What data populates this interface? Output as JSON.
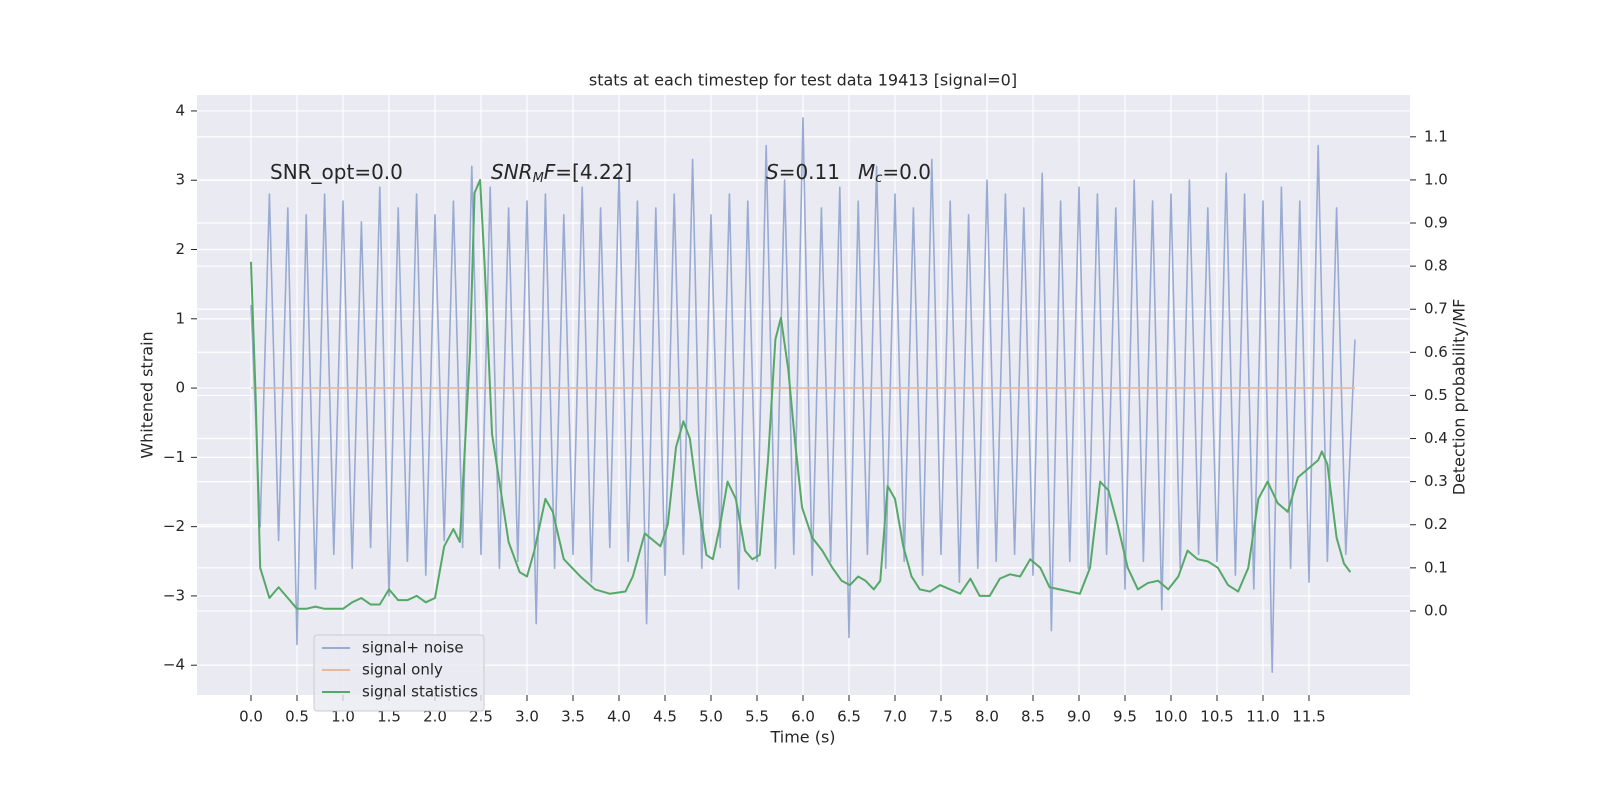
{
  "chart_data": {
    "type": "line",
    "title": "stats at each timestep for test data 19413 [signal=0]",
    "xlabel": "Time (s)",
    "ylabel": "Whitened strain",
    "y2label": "Detection probability/MF",
    "annotations": [
      [
        "SNR_opt=0.0"
      ],
      [
        "SNR",
        "M",
        "F",
        "=[4.22]"
      ],
      [
        "S",
        "=0.11"
      ],
      [
        "M",
        "c",
        "=0.0"
      ]
    ],
    "grid": true,
    "legend": "lower left",
    "xlim": [
      -0.587,
      12.598
    ],
    "ylim": [
      -4.43,
      4.23
    ],
    "y2lim": [
      -0.195,
      1.197
    ],
    "xticks": [
      {
        "value": 0,
        "label": "0.0"
      },
      {
        "value": 0.5,
        "label": "0.5"
      },
      {
        "value": 1,
        "label": "1.0"
      },
      {
        "value": 1.5,
        "label": "1.5"
      },
      {
        "value": 2,
        "label": "2.0"
      },
      {
        "value": 2.5,
        "label": "2.5"
      },
      {
        "value": 3,
        "label": "3.0"
      },
      {
        "value": 3.5,
        "label": "3.5"
      },
      {
        "value": 4,
        "label": "4.0"
      },
      {
        "value": 4.5,
        "label": "4.5"
      },
      {
        "value": 5,
        "label": "5.0"
      },
      {
        "value": 5.5,
        "label": "5.5"
      },
      {
        "value": 6,
        "label": "6.0"
      },
      {
        "value": 6.5,
        "label": "6.5"
      },
      {
        "value": 7,
        "label": "7.0"
      },
      {
        "value": 7.5,
        "label": "7.5"
      },
      {
        "value": 8,
        "label": "8.0"
      },
      {
        "value": 8.5,
        "label": "8.5"
      },
      {
        "value": 9,
        "label": "9.0"
      },
      {
        "value": 9.5,
        "label": "9.5"
      },
      {
        "value": 10,
        "label": "10.0"
      },
      {
        "value": 10.5,
        "label": "10.5"
      },
      {
        "value": 11,
        "label": "11.0"
      },
      {
        "value": 11.5,
        "label": "11.5"
      }
    ],
    "yticks": [
      {
        "value": -4,
        "label": "−4"
      },
      {
        "value": -3,
        "label": "−3"
      },
      {
        "value": -2,
        "label": "−2"
      },
      {
        "value": -1,
        "label": "−1"
      },
      0,
      1,
      2,
      3,
      4
    ],
    "y2ticks": [
      {
        "value": 0,
        "label": "0.0"
      },
      {
        "value": 0.1,
        "label": "0.1"
      },
      {
        "value": 0.2,
        "label": "0.2"
      },
      {
        "value": 0.3,
        "label": "0.3"
      },
      {
        "value": 0.4,
        "label": "0.4"
      },
      {
        "value": 0.5,
        "label": "0.5"
      },
      {
        "value": 0.6,
        "label": "0.6"
      },
      {
        "value": 0.7,
        "label": "0.7"
      },
      {
        "value": 0.8,
        "label": "0.8"
      },
      {
        "value": 0.9,
        "label": "0.9"
      },
      {
        "value": 1.0,
        "label": "1.0"
      },
      {
        "value": 1.1,
        "label": "1.1"
      }
    ],
    "series": [
      {
        "name": "signal+ noise",
        "color": "#99abd2",
        "x": [
          0,
          0.1,
          0.2,
          0.3,
          0.4,
          0.5,
          0.6,
          0.7,
          0.8,
          0.9,
          1,
          1.1,
          1.2,
          1.3,
          1.4,
          1.5,
          1.6,
          1.7,
          1.8,
          1.9,
          2,
          2.1,
          2.2,
          2.3,
          2.4,
          2.5,
          2.6,
          2.7,
          2.8,
          2.9,
          3,
          3.1,
          3.2,
          3.3,
          3.4,
          3.5,
          3.6,
          3.7,
          3.8,
          3.9,
          4,
          4.1,
          4.2,
          4.3,
          4.4,
          4.5,
          4.6,
          4.7,
          4.8,
          4.9,
          5,
          5.1,
          5.2,
          5.3,
          5.4,
          5.5,
          5.6,
          5.7,
          5.8,
          5.9,
          6,
          6.1,
          6.2,
          6.3,
          6.4,
          6.5,
          6.6,
          6.7,
          6.8,
          6.9,
          7,
          7.1,
          7.2,
          7.3,
          7.4,
          7.5,
          7.6,
          7.7,
          7.8,
          7.9,
          8,
          8.1,
          8.2,
          8.3,
          8.4,
          8.5,
          8.6,
          8.7,
          8.8,
          8.9,
          9,
          9.1,
          9.2,
          9.3,
          9.4,
          9.5,
          9.6,
          9.7,
          9.8,
          9.9,
          10,
          10.1,
          10.2,
          10.3,
          10.4,
          10.5,
          10.6,
          10.7,
          10.8,
          10.9,
          11,
          11.1,
          11.2,
          11.3,
          11.4,
          11.5,
          11.6,
          11.7,
          11.8,
          11.9,
          12
        ],
        "values": [
          1.2,
          -2.0,
          2.8,
          -2.2,
          2.6,
          -3.7,
          2.5,
          -2.9,
          2.8,
          -2.4,
          2.7,
          -2.6,
          2.4,
          -2.3,
          2.9,
          -3.0,
          2.6,
          -2.5,
          2.8,
          -2.7,
          2.5,
          -2.2,
          2.7,
          -2.3,
          3.2,
          -2.4,
          2.9,
          -2.6,
          2.6,
          -2.5,
          2.7,
          -3.4,
          2.8,
          -2.6,
          2.5,
          -2.4,
          2.9,
          -2.8,
          2.6,
          -2.3,
          3.1,
          -2.5,
          2.7,
          -3.4,
          2.6,
          -2.7,
          2.8,
          -2.4,
          3.3,
          -2.6,
          2.5,
          -2.3,
          2.8,
          -2.9,
          2.7,
          -2.5,
          3.5,
          -2.6,
          3.0,
          -2.4,
          3.9,
          -2.7,
          2.6,
          -2.5,
          2.9,
          -3.6,
          2.7,
          -2.4,
          3.2,
          -2.6,
          2.8,
          -2.5,
          2.6,
          -2.7,
          3.3,
          -2.4,
          2.7,
          -2.8,
          2.5,
          -2.6,
          3.0,
          -2.5,
          2.8,
          -2.4,
          2.6,
          -2.7,
          3.1,
          -3.5,
          2.7,
          -2.5,
          2.9,
          -2.6,
          2.8,
          -2.4,
          2.6,
          -2.9,
          3.0,
          -2.5,
          2.7,
          -3.2,
          2.8,
          -2.6,
          3.0,
          -2.4,
          2.6,
          -2.5,
          3.1,
          -2.7,
          2.8,
          -2.9,
          2.7,
          -4.1,
          2.9,
          -2.6,
          2.7,
          -2.8,
          3.5,
          -2.5,
          2.6,
          -2.4,
          0.7
        ]
      },
      {
        "name": "signal only",
        "color": "#e6b8a0",
        "x": [
          0,
          12
        ],
        "values": [
          0,
          0
        ]
      },
      {
        "name": "signal statistics",
        "color": "#55a868",
        "axis": "y2",
        "x": [
          0,
          0.05,
          0.1,
          0.2,
          0.3,
          0.4,
          0.5,
          0.6,
          0.7,
          0.8,
          0.9,
          1.0,
          1.1,
          1.2,
          1.3,
          1.4,
          1.5,
          1.6,
          1.7,
          1.8,
          1.9,
          2.0,
          2.1,
          2.2,
          2.27,
          2.38,
          2.43,
          2.49,
          2.54,
          2.62,
          2.7,
          2.8,
          2.92,
          3.0,
          3.08,
          3.2,
          3.28,
          3.4,
          3.58,
          3.74,
          3.9,
          4.07,
          4.15,
          4.28,
          4.45,
          4.53,
          4.62,
          4.7,
          4.77,
          4.85,
          4.95,
          5.02,
          5.1,
          5.18,
          5.27,
          5.37,
          5.45,
          5.53,
          5.62,
          5.7,
          5.76,
          5.84,
          5.91,
          5.99,
          6.1,
          6.21,
          6.32,
          6.42,
          6.51,
          6.6,
          6.68,
          6.77,
          6.84,
          6.92,
          7.0,
          7.09,
          7.18,
          7.27,
          7.38,
          7.49,
          7.6,
          7.71,
          7.82,
          7.92,
          8.03,
          8.14,
          8.25,
          8.36,
          8.47,
          8.58,
          8.68,
          8.79,
          8.9,
          9.01,
          9.12,
          9.23,
          9.32,
          9.42,
          9.53,
          9.64,
          9.75,
          9.86,
          9.97,
          10.08,
          10.18,
          10.29,
          10.4,
          10.51,
          10.62,
          10.73,
          10.84,
          10.95,
          11.05,
          11.16,
          11.27,
          11.38,
          11.49,
          11.6,
          11.64,
          11.7,
          11.8,
          11.88,
          11.95
        ],
        "values": [
          0.81,
          0.5,
          0.1,
          0.03,
          0.055,
          0.03,
          0.005,
          0.005,
          0.01,
          0.005,
          0.005,
          0.005,
          0.02,
          0.03,
          0.015,
          0.015,
          0.05,
          0.025,
          0.025,
          0.035,
          0.02,
          0.03,
          0.15,
          0.19,
          0.16,
          0.6,
          0.97,
          1.0,
          0.8,
          0.41,
          0.3,
          0.16,
          0.09,
          0.08,
          0.14,
          0.26,
          0.23,
          0.12,
          0.08,
          0.05,
          0.04,
          0.045,
          0.08,
          0.18,
          0.15,
          0.2,
          0.38,
          0.44,
          0.4,
          0.27,
          0.13,
          0.12,
          0.2,
          0.3,
          0.26,
          0.14,
          0.12,
          0.13,
          0.35,
          0.63,
          0.68,
          0.56,
          0.4,
          0.24,
          0.17,
          0.14,
          0.1,
          0.07,
          0.06,
          0.08,
          0.07,
          0.05,
          0.07,
          0.29,
          0.26,
          0.15,
          0.08,
          0.05,
          0.045,
          0.06,
          0.05,
          0.04,
          0.075,
          0.035,
          0.035,
          0.075,
          0.085,
          0.08,
          0.12,
          0.1,
          0.055,
          0.05,
          0.045,
          0.04,
          0.1,
          0.3,
          0.28,
          0.2,
          0.1,
          0.05,
          0.065,
          0.07,
          0.05,
          0.08,
          0.14,
          0.12,
          0.115,
          0.1,
          0.06,
          0.045,
          0.1,
          0.26,
          0.3,
          0.25,
          0.23,
          0.31,
          0.33,
          0.35,
          0.37,
          0.34,
          0.17,
          0.11,
          0.09
        ]
      }
    ]
  }
}
